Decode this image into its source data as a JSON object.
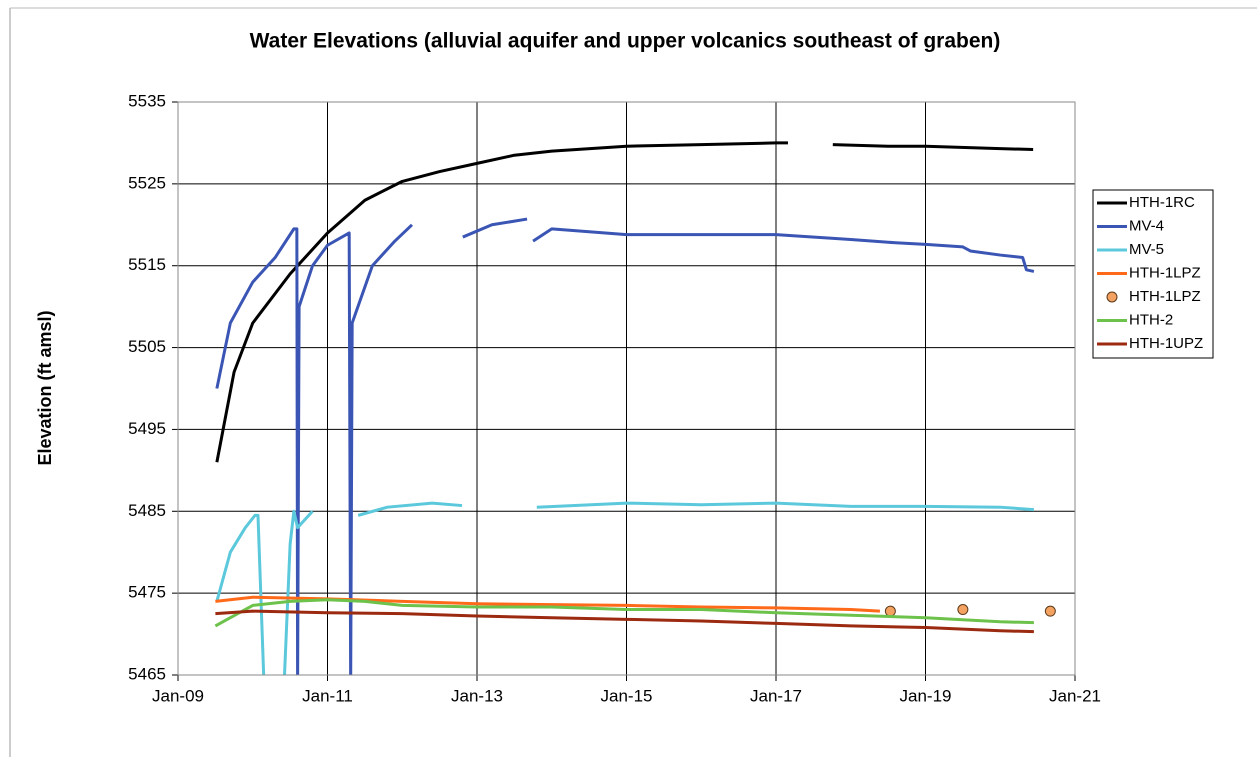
{
  "chart_data": {
    "type": "line",
    "title": "Water Elevations (alluvial aquifer and upper volcanics southeast of graben)",
    "y_label": "Elevation (ft amsl)",
    "xlim": [
      2009,
      2021
    ],
    "xticks": [
      {
        "value": 2009,
        "label": "Jan-09"
      },
      {
        "value": 2011,
        "label": "Jan-11"
      },
      {
        "value": 2013,
        "label": "Jan-13"
      },
      {
        "value": 2015,
        "label": "Jan-15"
      },
      {
        "value": 2017,
        "label": "Jan-17"
      },
      {
        "value": 2019,
        "label": "Jan-19"
      },
      {
        "value": 2021,
        "label": "Jan-21"
      }
    ],
    "ylim": [
      5465,
      5535
    ],
    "yticks": [
      5465,
      5475,
      5485,
      5495,
      5505,
      5515,
      5525,
      5535
    ],
    "grid": true,
    "legend": "right",
    "series": [
      {
        "name": "HTH-1RC",
        "color": "#000000",
        "mode": "lines",
        "x": [
          2009.52,
          2009.75,
          2010,
          2010.5,
          2011,
          2011.5,
          2012,
          2012.5,
          2013,
          2013.5,
          2014,
          2015,
          2016,
          2017,
          2017.16,
          null,
          2017.76,
          2018.5,
          2019,
          2020,
          2020.44
        ],
        "values": [
          5491,
          5502,
          5508,
          5514,
          5519,
          5523,
          5525.3,
          5526.5,
          5527.5,
          5528.5,
          5529,
          5529.6,
          5529.8,
          5530,
          5530,
          null,
          5529.8,
          5529.6,
          5529.6,
          5529.3,
          5529.2
        ]
      },
      {
        "name": "MV-4",
        "color": "#3a55b4",
        "mode": "lines",
        "x": [
          2009.52,
          2009.7,
          2010,
          2010.3,
          2010.55,
          2010.59,
          2010.6,
          2010.62,
          2010.8,
          2011,
          2011.29,
          2011.31,
          2011.33,
          2011.6,
          2011.9,
          2012.13,
          null,
          2012.81,
          2013.2,
          2013.67,
          null,
          2013.75,
          2014,
          2015,
          2016,
          2017,
          2018,
          2018.6,
          2019,
          2019.5,
          2019.6,
          2020,
          2020.3,
          2020.35,
          2020.45
        ],
        "values": [
          5500,
          5508,
          5513,
          5516,
          5519.5,
          5519.5,
          5464,
          5510,
          5515,
          5517.5,
          5519,
          5464,
          5508,
          5515,
          5518,
          5520,
          null,
          5518.5,
          5520,
          5520.7,
          null,
          5518,
          5519.5,
          5518.8,
          5518.8,
          5518.8,
          5518.2,
          5517.8,
          5517.6,
          5517.3,
          5516.8,
          5516.3,
          5516,
          5514.5,
          5514.3
        ]
      },
      {
        "name": "MV-5",
        "color": "#5bc8dc",
        "mode": "lines",
        "x": [
          2009.52,
          2009.7,
          2009.9,
          2010.03,
          2010.07,
          2010.15,
          null,
          2010.42,
          2010.5,
          2010.55,
          2010.6,
          2010.8,
          null,
          2011.41,
          2011.8,
          2012.4,
          2012.8,
          null,
          2013.8,
          2015,
          2016,
          2017,
          2018,
          2019,
          2020,
          2020.45
        ],
        "values": [
          5474,
          5480,
          5483,
          5484.5,
          5484.5,
          5464,
          null,
          5464,
          5481,
          5485,
          5483,
          5485,
          null,
          5484.5,
          5485.5,
          5486,
          5485.7,
          null,
          5485.5,
          5486,
          5485.8,
          5486,
          5485.6,
          5485.6,
          5485.5,
          5485.2
        ]
      },
      {
        "name": "HTH-1LPZ",
        "color": "#ff6a1a",
        "mode": "lines",
        "x": [
          2009.5,
          2010,
          2011,
          2012,
          2013,
          2014,
          2015,
          2016,
          2017,
          2018,
          2018.39
        ],
        "values": [
          5474,
          5474.5,
          5474.3,
          5474,
          5473.7,
          5473.6,
          5473.5,
          5473.3,
          5473.2,
          5473,
          5472.8
        ]
      },
      {
        "name": "HTH-1LPZ",
        "color": "#f4a261",
        "mode": "markers",
        "x": [
          2018.53,
          2019.5,
          2020.67
        ],
        "values": [
          5472.8,
          5473,
          5472.8
        ]
      },
      {
        "name": "HTH-2",
        "color": "#6cc24a",
        "mode": "lines",
        "x": [
          2009.5,
          2009.7,
          2010,
          2010.5,
          2011,
          2011.5,
          2012,
          2013,
          2014,
          2015,
          2016,
          2017,
          2018,
          2019,
          2020,
          2020.45
        ],
        "values": [
          5471,
          5472,
          5473.5,
          5474,
          5474.2,
          5474,
          5473.5,
          5473.3,
          5473.3,
          5473,
          5473,
          5472.6,
          5472.3,
          5472,
          5471.5,
          5471.4
        ]
      },
      {
        "name": "HTH-1UPZ",
        "color": "#9c2a10",
        "mode": "lines",
        "x": [
          2009.5,
          2010,
          2011,
          2012,
          2013,
          2014,
          2015,
          2016,
          2017,
          2018,
          2019,
          2020,
          2020.45
        ],
        "values": [
          5472.5,
          5472.8,
          5472.6,
          5472.5,
          5472.2,
          5472,
          5471.8,
          5471.6,
          5471.3,
          5471,
          5470.8,
          5470.4,
          5470.3
        ]
      }
    ]
  }
}
